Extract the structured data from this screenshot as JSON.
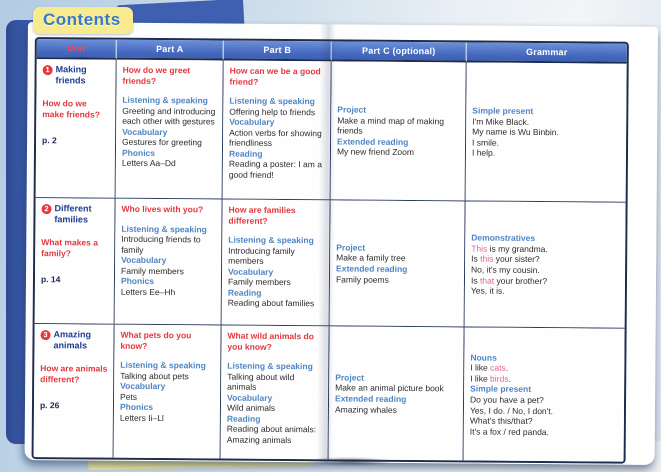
{
  "page_title": "Contents",
  "colors": {
    "cover_blue": "#3f5fb0",
    "header_bar_blue": "#4468bd",
    "unit_header_red": "#f1485f",
    "question_red": "#e4383f",
    "label_blue": "#4e86c4",
    "unit_title_navy": "#1d3e8f",
    "highlight_pink": "#e2628f",
    "contents_badge_yellow": "#f8ea8f",
    "contents_text_blue": "#3579cf"
  },
  "table": {
    "headers": [
      "Unit",
      "Part A",
      "Part B",
      "Part C (optional)",
      "Grammar"
    ],
    "rows": [
      {
        "unit": {
          "num": "1",
          "title": "Making friends",
          "question": "How do we make friends?",
          "page": "p. 2"
        },
        "part_a": {
          "question": "How do we greet friends?",
          "sections": [
            {
              "label": "Listening & speaking",
              "text": "Greeting and introducing each other with gestures"
            },
            {
              "label": "Vocabulary",
              "text": "Gestures for greeting"
            },
            {
              "label": "Phonics",
              "text": "Letters Aa–Dd"
            }
          ]
        },
        "part_b": {
          "question": "How can we be a good friend?",
          "sections": [
            {
              "label": "Listening & speaking",
              "text": "Offering help to friends"
            },
            {
              "label": "Vocabulary",
              "text": "Action verbs for showing friendliness"
            },
            {
              "label": "Reading",
              "text": "Reading a poster: I am a good friend!"
            }
          ]
        },
        "part_c": {
          "sections": [
            {
              "label": "Project",
              "text": "Make a mind map of making friends"
            },
            {
              "label": "Extended reading",
              "text": "My new friend Zoom"
            }
          ]
        },
        "grammar": {
          "sections": [
            {
              "label": "Simple present",
              "lines": [
                [
                  {
                    "t": "I'm Mike Black."
                  }
                ],
                [
                  {
                    "t": "My name is Wu Binbin."
                  }
                ],
                [
                  {
                    "t": "I smile."
                  }
                ],
                [
                  {
                    "t": "I help."
                  }
                ]
              ]
            }
          ]
        }
      },
      {
        "unit": {
          "num": "2",
          "title": "Different families",
          "question": "What makes a family?",
          "page": "p. 14"
        },
        "part_a": {
          "question": "Who lives with you?",
          "sections": [
            {
              "label": "Listening & speaking",
              "text": "Introducing friends to family"
            },
            {
              "label": "Vocabulary",
              "text": "Family members"
            },
            {
              "label": "Phonics",
              "text": "Letters Ee–Hh"
            }
          ]
        },
        "part_b": {
          "question": "How are families different?",
          "sections": [
            {
              "label": "Listening & speaking",
              "text": "Introducing family members"
            },
            {
              "label": "Vocabulary",
              "text": "Family members"
            },
            {
              "label": "Reading",
              "text": "Reading about families"
            }
          ]
        },
        "part_c": {
          "sections": [
            {
              "label": "Project",
              "text": "Make a family tree"
            },
            {
              "label": "Extended reading",
              "text": "Family poems"
            }
          ]
        },
        "grammar": {
          "sections": [
            {
              "label": "Demonstratives",
              "lines": [
                [
                  {
                    "t": "This",
                    "hl": true
                  },
                  {
                    "t": " is my grandma."
                  }
                ],
                [
                  {
                    "t": "Is "
                  },
                  {
                    "t": "this",
                    "hl": true
                  },
                  {
                    "t": " your sister?"
                  }
                ],
                [
                  {
                    "t": "No, it's my cousin."
                  }
                ],
                [
                  {
                    "t": "Is "
                  },
                  {
                    "t": "that",
                    "hl": true
                  },
                  {
                    "t": " your brother?"
                  }
                ],
                [
                  {
                    "t": "Yes, it is."
                  }
                ]
              ]
            }
          ]
        }
      },
      {
        "unit": {
          "num": "3",
          "title": "Amazing animals",
          "question": "How are animals different?",
          "page": "p. 26"
        },
        "part_a": {
          "question": "What pets do you know?",
          "sections": [
            {
              "label": "Listening & speaking",
              "text": "Talking about pets"
            },
            {
              "label": "Vocabulary",
              "text": "Pets"
            },
            {
              "label": "Phonics",
              "text": "Letters Ii–Ll"
            }
          ]
        },
        "part_b": {
          "question": "What wild animals do you know?",
          "sections": [
            {
              "label": "Listening & speaking",
              "text": "Talking about wild animals"
            },
            {
              "label": "Vocabulary",
              "text": "Wild animals"
            },
            {
              "label": "Reading",
              "text": "Reading about animals: Amazing animals"
            }
          ]
        },
        "part_c": {
          "sections": [
            {
              "label": "Project",
              "text": "Make an animal picture book"
            },
            {
              "label": "Extended reading",
              "text": "Amazing whales"
            }
          ]
        },
        "grammar": {
          "sections": [
            {
              "label": "Nouns",
              "lines": [
                [
                  {
                    "t": "I like "
                  },
                  {
                    "t": "cats",
                    "hl": true
                  },
                  {
                    "t": "."
                  }
                ],
                [
                  {
                    "t": "I like "
                  },
                  {
                    "t": "birds",
                    "hl": true
                  },
                  {
                    "t": "."
                  }
                ]
              ]
            },
            {
              "label": "Simple present",
              "lines": [
                [
                  {
                    "t": "Do you have a pet?"
                  }
                ],
                [
                  {
                    "t": "Yes, I do. / No, I don't."
                  }
                ],
                [
                  {
                    "t": "What's this/that?"
                  }
                ],
                [
                  {
                    "t": "It's a fox / red panda."
                  }
                ]
              ]
            }
          ]
        }
      }
    ]
  }
}
